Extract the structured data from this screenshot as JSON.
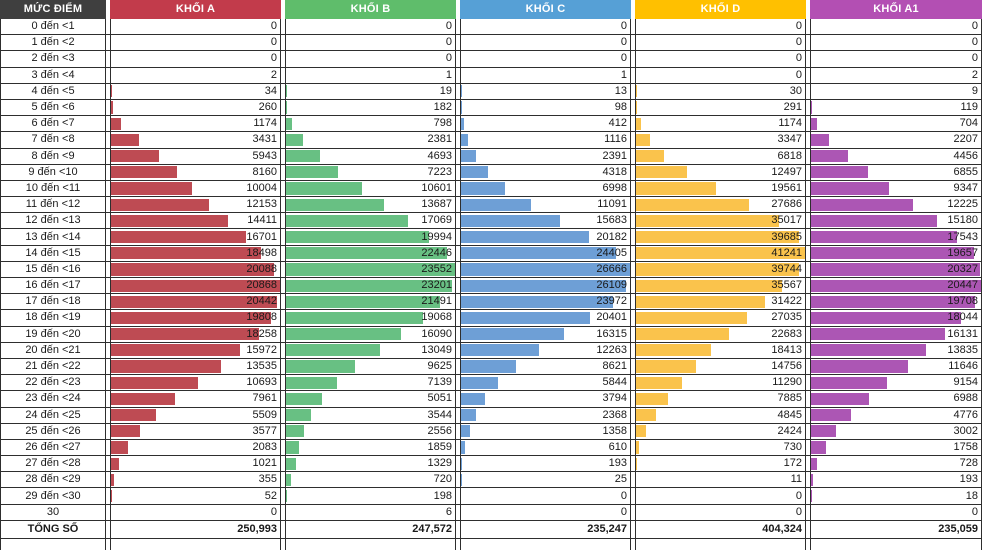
{
  "table": {
    "score_col_header": "MỨC ĐIỂM",
    "total_row_label": "TỔNG SỐ",
    "header_bg": "#3f3f3f",
    "score_labels": [
      "0 đến <1",
      "1 đến <2",
      "2 đến <3",
      "3 đến <4",
      "4 đến <5",
      "5 đến <6",
      "6 đến <7",
      "7 đến <8",
      "8 đến <9",
      "9 đến <10",
      "10 đến <11",
      "11 đến <12",
      "12 đến <13",
      "13 đến <14",
      "14 đến <15",
      "15 đến <16",
      "16 đến <17",
      "17 đến <18",
      "18 đến <19",
      "19 đến <20",
      "20 đến <21",
      "21 đến <22",
      "22 đến <23",
      "23 đến <24",
      "24 đến <25",
      "25 đến <26",
      "26 đến <27",
      "27 đến <28",
      "28 đến <29",
      "29 đến <30",
      "30"
    ],
    "columns": [
      {
        "label": "KHỐI A",
        "header_color": "#c23b4b",
        "bar_color": "#be4b53",
        "total": "250,993",
        "values": [
          0,
          0,
          0,
          2,
          34,
          260,
          1174,
          3431,
          5943,
          8160,
          10004,
          12153,
          14411,
          16701,
          18498,
          20088,
          20868,
          20442,
          19808,
          18258,
          15972,
          13535,
          10693,
          7961,
          5509,
          3577,
          2083,
          1021,
          355,
          52,
          0
        ]
      },
      {
        "label": "KHỐI B",
        "header_color": "#5fbd6b",
        "bar_color": "#68c083",
        "total": "247,572",
        "values": [
          0,
          0,
          0,
          1,
          19,
          182,
          798,
          2381,
          4693,
          7223,
          10601,
          13687,
          17069,
          19994,
          22446,
          23552,
          23201,
          21491,
          19068,
          16090,
          13049,
          9625,
          7139,
          5051,
          3544,
          2556,
          1859,
          1329,
          720,
          198,
          6
        ]
      },
      {
        "label": "KHỐI C",
        "header_color": "#56a0d6",
        "bar_color": "#6e9fd6",
        "total": "235,247",
        "values": [
          0,
          0,
          0,
          1,
          13,
          98,
          412,
          1116,
          2391,
          4318,
          6998,
          11091,
          15683,
          20182,
          24405,
          26666,
          26109,
          23972,
          20401,
          16315,
          12263,
          8621,
          5844,
          3794,
          2368,
          1358,
          610,
          193,
          25,
          0,
          0
        ]
      },
      {
        "label": "KHỐI D",
        "header_color": "#ffc000",
        "bar_color": "#fac34c",
        "total": "404,324",
        "values": [
          0,
          0,
          0,
          0,
          30,
          291,
          1174,
          3347,
          6818,
          12497,
          19561,
          27686,
          35017,
          39685,
          41241,
          39744,
          35567,
          31422,
          27035,
          22683,
          18413,
          14756,
          11290,
          7885,
          4845,
          2424,
          730,
          172,
          11,
          0,
          0
        ]
      },
      {
        "label": "KHỐI A1",
        "header_color": "#b34fb3",
        "bar_color": "#ac56b4",
        "total": "235,059",
        "values": [
          0,
          0,
          0,
          2,
          9,
          119,
          704,
          2207,
          4456,
          6855,
          9347,
          12225,
          15180,
          17543,
          19657,
          20327,
          20447,
          19708,
          18044,
          16131,
          13835,
          11646,
          9154,
          6988,
          4776,
          3002,
          1758,
          728,
          193,
          18,
          0
        ]
      }
    ]
  }
}
